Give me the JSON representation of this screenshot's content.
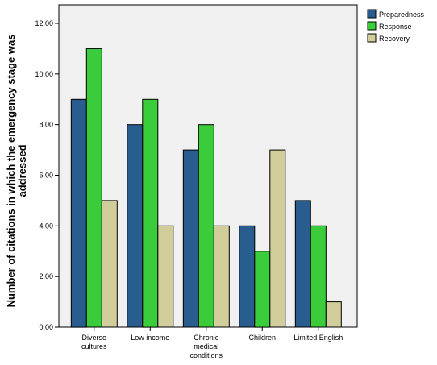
{
  "chart_data": {
    "type": "bar",
    "categories": [
      [
        "Diverse",
        "cultures"
      ],
      [
        "Low income"
      ],
      [
        "Chronic",
        "medical",
        "conditions"
      ],
      [
        "Children"
      ],
      [
        "Limited English"
      ]
    ],
    "series": [
      {
        "name": "Preparedness",
        "values": [
          9,
          8,
          7,
          4,
          5
        ],
        "color": "#2a5d8f"
      },
      {
        "name": "Response",
        "values": [
          11,
          9,
          8,
          3,
          4
        ],
        "color": "#3bcc3b"
      },
      {
        "name": "Recovery",
        "values": [
          5,
          4,
          4,
          7,
          1
        ],
        "color": "#d1cd9b"
      }
    ],
    "title": "",
    "xlabel": "",
    "ylabel": [
      "Number of citations in which the emergency stage was",
      "addressed"
    ],
    "ylim": [
      0,
      12
    ],
    "yticks": [
      0,
      2,
      4,
      6,
      8,
      10,
      12
    ],
    "ytick_labels": [
      "0.00",
      "2.00",
      "4.00",
      "6.00",
      "8.00",
      "10.00",
      "12.00"
    ],
    "grid": false,
    "legend_position": "top-right",
    "plot_background": "#f0f0f0",
    "bar_outline": "#000000"
  }
}
